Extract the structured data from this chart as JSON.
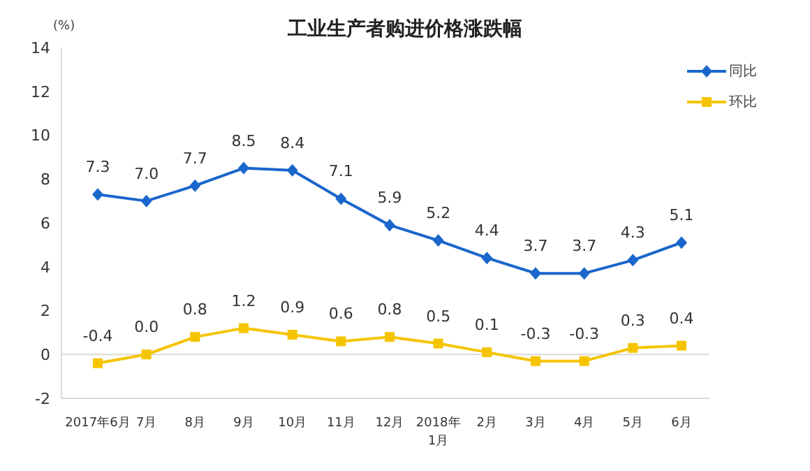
{
  "chart_data": {
    "type": "line",
    "title": "工业生产者购进价格涨跌幅",
    "ylabel": "(%)",
    "categories": [
      "2017年6月",
      "7月",
      "8月",
      "9月",
      "10月",
      "11月",
      "12月",
      "2018年\n1月",
      "2月",
      "3月",
      "4月",
      "5月",
      "6月"
    ],
    "series": [
      {
        "name": "同比",
        "color": "#1a66cc",
        "marker": "diamond",
        "values": [
          7.3,
          7.0,
          7.7,
          8.5,
          8.4,
          7.1,
          5.9,
          5.2,
          4.4,
          3.7,
          3.7,
          4.3,
          5.1
        ],
        "value_labels": [
          "7.3",
          "7.0",
          "7.7",
          "8.5",
          "8.4",
          "7.1",
          "5.9",
          "5.2",
          "4.4",
          "3.7",
          "3.7",
          "4.3",
          "5.1"
        ]
      },
      {
        "name": "环比",
        "color": "#f5c400",
        "marker": "square",
        "values": [
          -0.4,
          0.0,
          0.8,
          1.2,
          0.9,
          0.6,
          0.8,
          0.5,
          0.1,
          -0.3,
          -0.3,
          0.3,
          0.4
        ],
        "value_labels": [
          "-0.4",
          "0.0",
          "0.8",
          "1.2",
          "0.9",
          "0.6",
          "0.8",
          "0.5",
          "0.1",
          "-0.3",
          "-0.3",
          "0.3",
          "0.4"
        ]
      }
    ],
    "ylim": [
      -2,
      14
    ],
    "yticks": [
      -2,
      0,
      2,
      4,
      6,
      8,
      10,
      12,
      14
    ],
    "ref_lines": [
      {
        "axis": "y",
        "value": 0,
        "label": null,
        "color": "#d9d9d9"
      }
    ],
    "grid": false,
    "legend": "top right",
    "line_style": "solid"
  }
}
